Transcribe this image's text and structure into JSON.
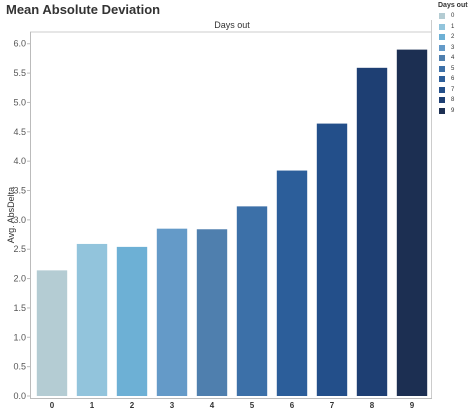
{
  "title": "Mean Absolute Deviation",
  "chart_data": {
    "type": "bar",
    "title": "Mean Absolute Deviation",
    "header": "Days out",
    "xlabel": "",
    "ylabel": "Avg. AbsDelta",
    "categories": [
      "0",
      "1",
      "2",
      "3",
      "4",
      "5",
      "6",
      "7",
      "8",
      "9"
    ],
    "values": [
      2.14,
      2.59,
      2.54,
      2.85,
      2.84,
      3.23,
      3.84,
      4.64,
      5.59,
      5.9
    ],
    "ylim": [
      0,
      6.2
    ],
    "yticks": [
      "0.0",
      "0.5",
      "1.0",
      "1.5",
      "2.0",
      "2.5",
      "3.0",
      "3.5",
      "4.0",
      "4.5",
      "5.0",
      "5.5",
      "6.0"
    ],
    "colors": [
      "#b4ccd3",
      "#92c4dc",
      "#6db0d5",
      "#649ac8",
      "#4f7fae",
      "#3c70a8",
      "#2c5e9a",
      "#234f8a",
      "#1e3f73",
      "#1c2f52"
    ],
    "grid": false,
    "legend": {
      "title": "Days out",
      "placement": "top-right",
      "items": [
        "0",
        "1",
        "2",
        "3",
        "4",
        "5",
        "6",
        "7",
        "8",
        "9"
      ]
    }
  }
}
